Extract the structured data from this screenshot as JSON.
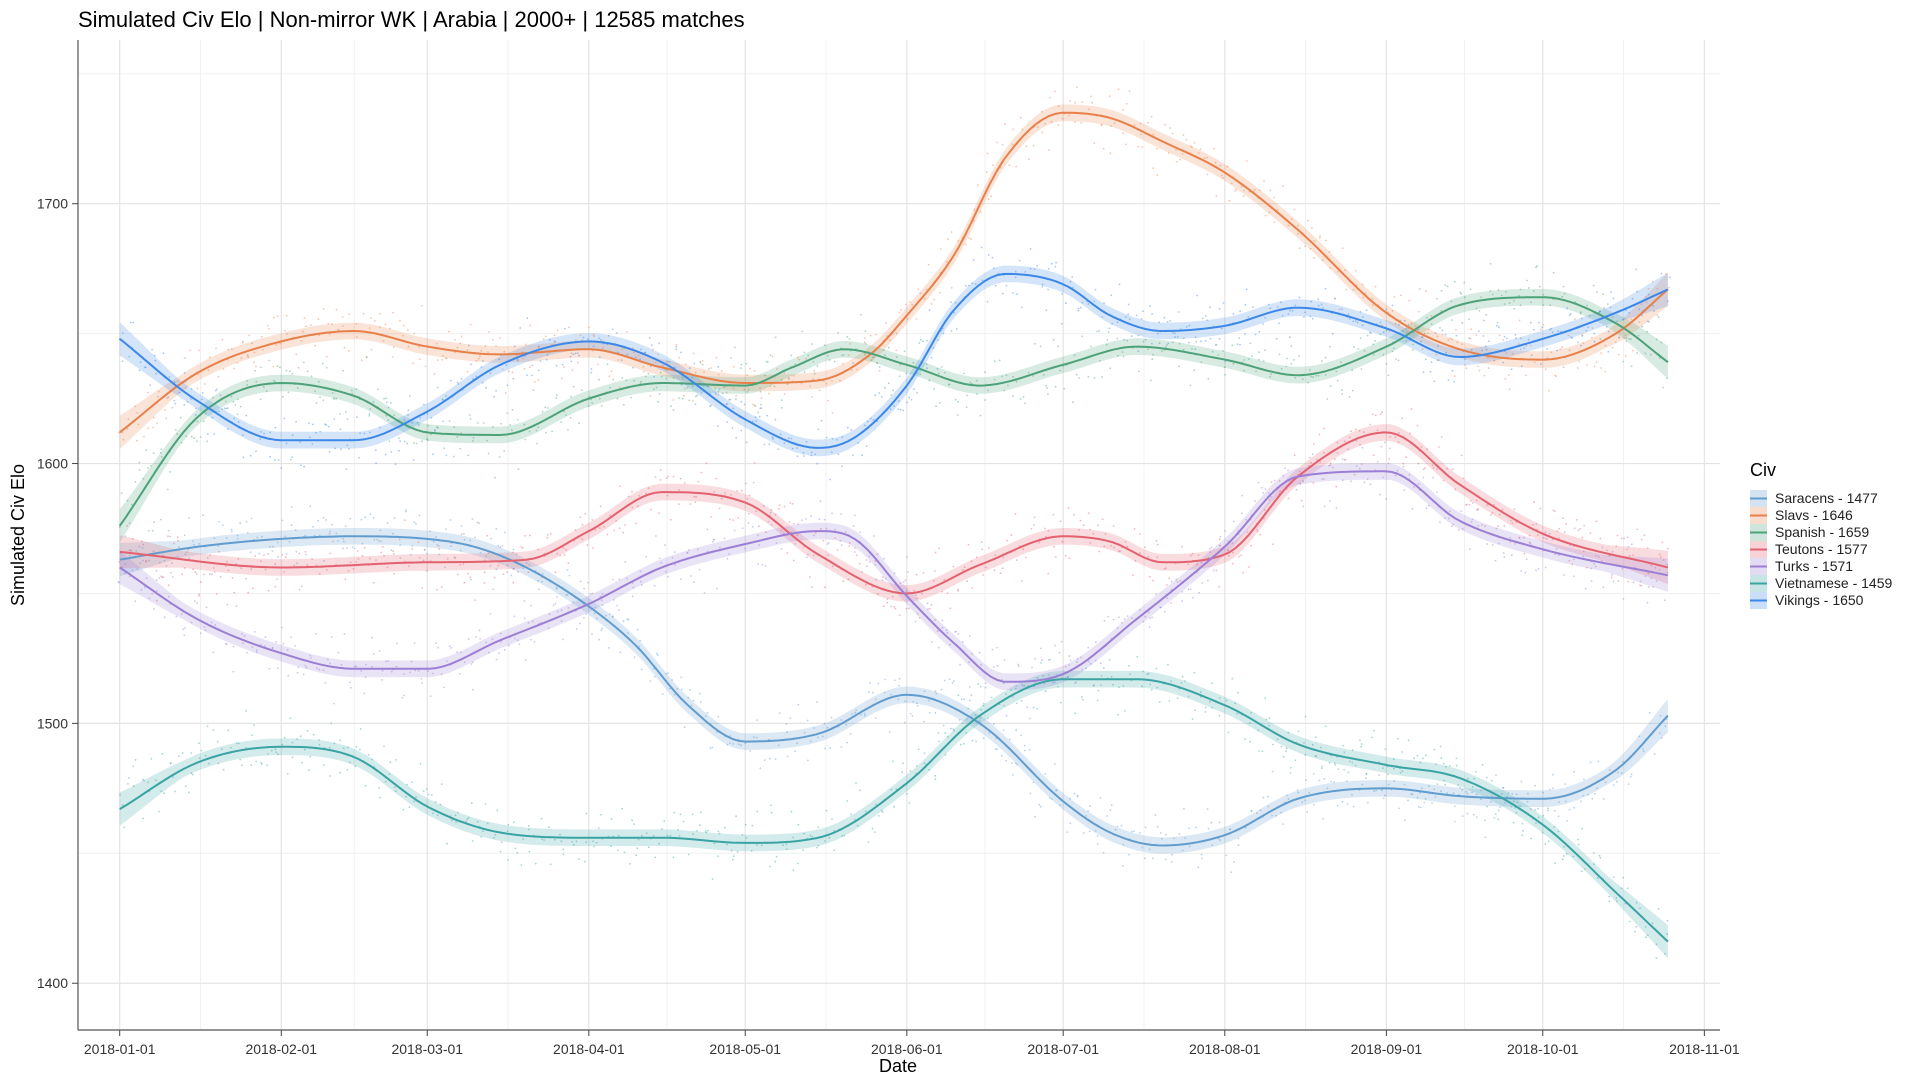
{
  "chart_data": {
    "type": "line",
    "title": "Simulated Civ Elo | Non-mirror WK | Arabia | 2000+ | 12585 matches",
    "xlabel": "Date",
    "ylabel": "Simulated Civ Elo",
    "x_ticks": [
      "2018-01-01",
      "2018-02-01",
      "2018-03-01",
      "2018-04-01",
      "2018-05-01",
      "2018-06-01",
      "2018-07-01",
      "2018-08-01",
      "2018-09-01",
      "2018-10-01",
      "2018-11-01"
    ],
    "y_ticks": [
      1400,
      1500,
      1600,
      1700
    ],
    "xlim": [
      "2017-12-24",
      "2018-11-04"
    ],
    "ylim": [
      1382,
      1763
    ],
    "grid": true,
    "legend_title": "Civ",
    "legend_position": "right",
    "series": [
      {
        "name": "Saracens - 1477",
        "color": "#619CCF",
        "x": [
          "2018-01-01",
          "2018-01-16",
          "2018-02-01",
          "2018-02-15",
          "2018-03-01",
          "2018-03-10",
          "2018-03-20",
          "2018-04-01",
          "2018-04-10",
          "2018-04-20",
          "2018-05-01",
          "2018-05-15",
          "2018-06-01",
          "2018-06-15",
          "2018-07-01",
          "2018-07-10",
          "2018-07-20",
          "2018-08-01",
          "2018-08-15",
          "2018-09-01",
          "2018-09-15",
          "2018-10-01",
          "2018-10-15",
          "2018-10-25"
        ],
        "y": [
          1563,
          1568,
          1571,
          1572,
          1571,
          1568,
          1560,
          1545,
          1530,
          1507,
          1493,
          1496,
          1511,
          1500,
          1470,
          1458,
          1453,
          1457,
          1471,
          1475,
          1472,
          1471,
          1482,
          1503
        ]
      },
      {
        "name": "Slavs - 1646",
        "color": "#E8804A",
        "x": [
          "2018-01-01",
          "2018-01-16",
          "2018-02-01",
          "2018-02-15",
          "2018-03-01",
          "2018-03-15",
          "2018-04-01",
          "2018-04-15",
          "2018-05-01",
          "2018-05-15",
          "2018-05-25",
          "2018-06-01",
          "2018-06-10",
          "2018-06-20",
          "2018-07-01",
          "2018-07-10",
          "2018-07-20",
          "2018-08-01",
          "2018-08-15",
          "2018-09-01",
          "2018-09-15",
          "2018-10-01",
          "2018-10-15",
          "2018-10-25"
        ],
        "y": [
          1612,
          1635,
          1647,
          1651,
          1645,
          1642,
          1644,
          1637,
          1631,
          1632,
          1642,
          1657,
          1680,
          1718,
          1735,
          1733,
          1724,
          1712,
          1690,
          1658,
          1644,
          1640,
          1650,
          1667
        ]
      },
      {
        "name": "Spanish - 1659",
        "color": "#4DA27A",
        "x": [
          "2018-01-01",
          "2018-01-16",
          "2018-02-01",
          "2018-02-15",
          "2018-03-01",
          "2018-03-15",
          "2018-04-01",
          "2018-04-15",
          "2018-05-01",
          "2018-05-10",
          "2018-05-20",
          "2018-06-01",
          "2018-06-15",
          "2018-07-01",
          "2018-07-15",
          "2018-08-01",
          "2018-08-15",
          "2018-09-01",
          "2018-09-15",
          "2018-10-01",
          "2018-10-15",
          "2018-10-25"
        ],
        "y": [
          1576,
          1618,
          1631,
          1626,
          1612,
          1611,
          1625,
          1631,
          1630,
          1637,
          1644,
          1638,
          1630,
          1638,
          1645,
          1640,
          1634,
          1645,
          1661,
          1664,
          1654,
          1639
        ]
      },
      {
        "name": "Teutons - 1577",
        "color": "#E4616F",
        "x": [
          "2018-01-01",
          "2018-02-01",
          "2018-03-01",
          "2018-03-20",
          "2018-04-01",
          "2018-04-15",
          "2018-05-01",
          "2018-05-15",
          "2018-06-01",
          "2018-06-15",
          "2018-07-01",
          "2018-07-10",
          "2018-07-20",
          "2018-08-01",
          "2018-08-15",
          "2018-09-01",
          "2018-09-15",
          "2018-10-01",
          "2018-10-25"
        ],
        "y": [
          1566,
          1560,
          1562,
          1563,
          1574,
          1589,
          1585,
          1565,
          1550,
          1561,
          1572,
          1570,
          1562,
          1565,
          1595,
          1612,
          1592,
          1573,
          1560
        ]
      },
      {
        "name": "Turks - 1571",
        "color": "#9B7FD4",
        "x": [
          "2018-01-01",
          "2018-01-16",
          "2018-02-01",
          "2018-02-15",
          "2018-03-01",
          "2018-03-15",
          "2018-04-01",
          "2018-04-15",
          "2018-05-01",
          "2018-05-15",
          "2018-05-22",
          "2018-06-01",
          "2018-06-10",
          "2018-06-20",
          "2018-07-01",
          "2018-07-15",
          "2018-08-01",
          "2018-08-15",
          "2018-09-01",
          "2018-09-15",
          "2018-10-01",
          "2018-10-25"
        ],
        "y": [
          1560,
          1540,
          1527,
          1521,
          1521,
          1532,
          1546,
          1560,
          1569,
          1574,
          1571,
          1549,
          1531,
          1516,
          1519,
          1540,
          1568,
          1595,
          1597,
          1578,
          1567,
          1557
        ]
      },
      {
        "name": "Vietnamese - 1459",
        "color": "#3AA3A3",
        "x": [
          "2018-01-01",
          "2018-01-16",
          "2018-02-01",
          "2018-02-15",
          "2018-03-01",
          "2018-03-15",
          "2018-04-01",
          "2018-04-15",
          "2018-05-01",
          "2018-05-15",
          "2018-06-01",
          "2018-06-15",
          "2018-07-01",
          "2018-07-15",
          "2018-08-01",
          "2018-08-15",
          "2018-09-01",
          "2018-09-15",
          "2018-10-01",
          "2018-10-15",
          "2018-10-25"
        ],
        "y": [
          1467,
          1485,
          1491,
          1487,
          1468,
          1458,
          1456,
          1456,
          1454,
          1456,
          1477,
          1503,
          1517,
          1517,
          1507,
          1492,
          1484,
          1479,
          1461,
          1435,
          1416
        ]
      },
      {
        "name": "Vikings - 1650",
        "color": "#3C88E8",
        "x": [
          "2018-01-01",
          "2018-01-16",
          "2018-02-01",
          "2018-02-15",
          "2018-03-01",
          "2018-03-15",
          "2018-04-01",
          "2018-04-15",
          "2018-05-01",
          "2018-05-15",
          "2018-05-22",
          "2018-06-01",
          "2018-06-10",
          "2018-06-20",
          "2018-07-01",
          "2018-07-10",
          "2018-07-20",
          "2018-08-01",
          "2018-08-15",
          "2018-09-01",
          "2018-09-15",
          "2018-10-01",
          "2018-10-15",
          "2018-10-25"
        ],
        "y": [
          1648,
          1624,
          1609,
          1609,
          1620,
          1638,
          1647,
          1639,
          1617,
          1606,
          1610,
          1630,
          1659,
          1673,
          1669,
          1657,
          1651,
          1653,
          1660,
          1652,
          1641,
          1648,
          1658,
          1667
        ]
      }
    ]
  }
}
